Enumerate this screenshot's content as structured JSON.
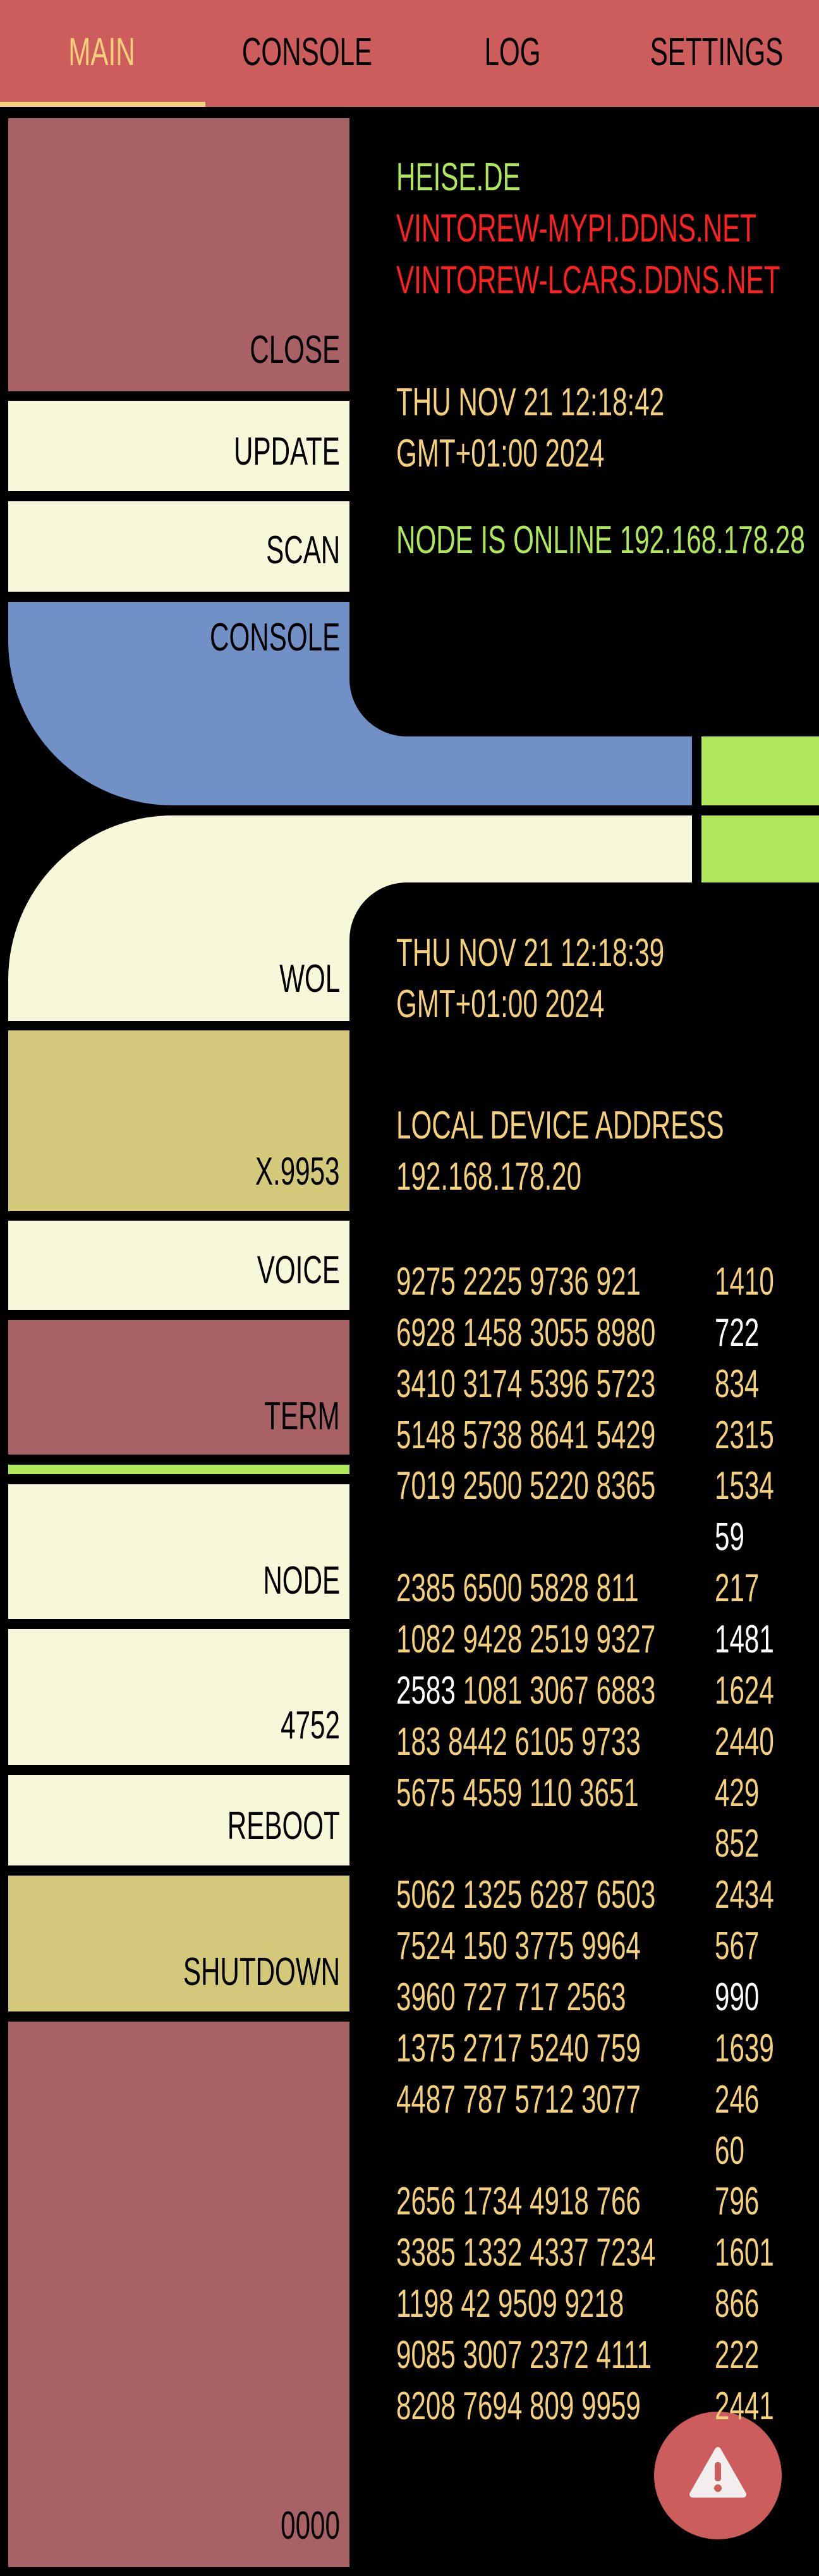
{
  "tabs": [
    "MAIN",
    "CONSOLE",
    "LOG",
    "SETTINGS"
  ],
  "buttons": [
    "CLOSE",
    "UPDATE",
    "SCAN",
    "CONSOLE",
    "WOL",
    "X.9953",
    "VOICE",
    "TERM",
    "NODE",
    "4752",
    "REBOOT",
    "SHUTDOWN",
    "0000"
  ],
  "hosts": [
    "HEISE.DE",
    "VINTOREW-MYPI.DDNS.NET",
    "VINTOREW-LCARS.DDNS.NET"
  ],
  "clock1": [
    "THU NOV 21 12:18:42",
    "GMT+01:00 2024"
  ],
  "status": "NODE IS ONLINE 192.168.178.28",
  "clock2": [
    "THU NOV 21 12:18:39",
    "GMT+01:00 2024"
  ],
  "local": [
    "LOCAL DEVICE ADDRESS",
    "192.168.178.20"
  ],
  "numbers": [
    {
      "a": "9275 2225 9736 921",
      "b": "1410"
    },
    {
      "a": "6928 1458 3055 8980",
      "b": "722"
    },
    {
      "a": "3410 3174 5396 5723",
      "b": "834"
    },
    {
      "a": "5148 5738 8641 5429",
      "b": "2315"
    },
    {
      "a": "7019 2500 5220 8365",
      "b": "1534"
    },
    {
      "b": "59"
    },
    {
      "a": "2385 6500 5828 811",
      "b": "217"
    },
    {
      "a": "1082 9428 2519 9327",
      "b": "1481"
    },
    {
      "a_lead": "2583",
      "a": "1081 3067 6883",
      "b": "1624"
    },
    {
      "a": "183 8442 6105 9733",
      "b": "2440"
    },
    {
      "a": "5675 4559 110 3651",
      "b": "429"
    },
    {
      "b": "852"
    },
    {
      "a": "5062 1325 6287 6503",
      "b": "2434"
    },
    {
      "a": "7524 150 3775 9964",
      "b": "567"
    },
    {
      "a": "3960 727 717 2563",
      "b": "990"
    },
    {
      "a": "1375 2717 5240 759",
      "b": "1639"
    },
    {
      "a": "4487 787 5712 3077",
      "b": "246"
    },
    {
      "b": "60"
    },
    {
      "a": "2656 1734 4918 766",
      "b": "796"
    },
    {
      "a": "3385 1332 4337 7234",
      "b": "1601"
    },
    {
      "a": "1198 42 9509 9218",
      "b": "866"
    },
    {
      "a": "9085 3007 2372 4111",
      "b": "222"
    },
    {
      "a": "8208 7694 809 9959",
      "b": "2441"
    }
  ]
}
